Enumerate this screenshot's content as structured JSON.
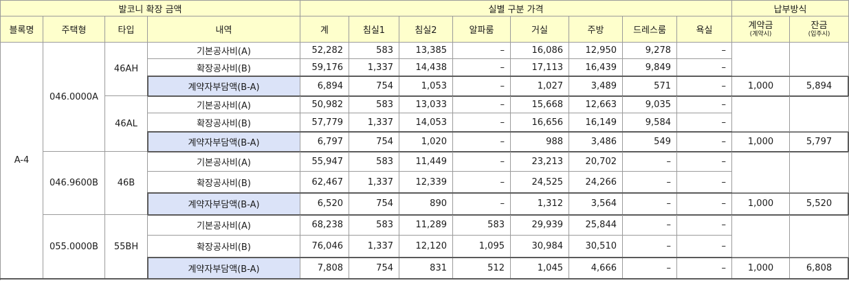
{
  "header": {
    "group_balcony": "발코니 확장 금액",
    "group_room_price": "실별 구분 가격",
    "group_payment": "납부방식",
    "columns": [
      "블록명",
      "주택형",
      "타입",
      "내역",
      "계",
      "침실1",
      "침실2",
      "알파룸",
      "거실",
      "주방",
      "드레스룸",
      "욕실"
    ],
    "contract": {
      "label": "계약금",
      "sub": "(계약시)"
    },
    "balance": {
      "label": "잔금",
      "sub": "(입주시)"
    }
  },
  "block": "A-4",
  "housing_types": [
    {
      "code": "046.0000A",
      "types": [
        {
          "name": "46AH",
          "rows": [
            {
              "label": "기본공사비(A)",
              "values": [
                "52,282",
                "583",
                "13,385",
                "–",
                "16,086",
                "12,950",
                "9,278",
                "–"
              ]
            },
            {
              "label": "확장공사비(B)",
              "values": [
                "59,176",
                "1,337",
                "14,438",
                "–",
                "17,113",
                "16,439",
                "9,849",
                "–"
              ]
            },
            {
              "label": "계약자부담액(B-A)",
              "values": [
                "6,894",
                "754",
                "1,053",
                "–",
                "1,027",
                "3,489",
                "571",
                "–"
              ],
              "contract": "1,000",
              "balance": "5,894"
            }
          ]
        },
        {
          "name": "46AL",
          "rows": [
            {
              "label": "기본공사비(A)",
              "values": [
                "50,982",
                "583",
                "13,033",
                "–",
                "15,668",
                "12,663",
                "9,035",
                "–"
              ]
            },
            {
              "label": "확장공사비(B)",
              "values": [
                "57,779",
                "1,337",
                "14,053",
                "–",
                "16,656",
                "16,149",
                "9,584",
                "–"
              ]
            },
            {
              "label": "계약자부담액(B-A)",
              "values": [
                "6,797",
                "754",
                "1,020",
                "–",
                "988",
                "3,486",
                "549",
                "–"
              ],
              "contract": "1,000",
              "balance": "5,797"
            }
          ]
        }
      ]
    },
    {
      "code": "046.9600B",
      "types": [
        {
          "name": "46B",
          "rows": [
            {
              "label": "기본공사비(A)",
              "values": [
                "55,947",
                "583",
                "11,449",
                "–",
                "23,213",
                "20,702",
                "–",
                "–"
              ]
            },
            {
              "label": "확장공사비(B)",
              "values": [
                "62,467",
                "1,337",
                "12,339",
                "–",
                "24,525",
                "24,266",
                "–",
                "–"
              ]
            },
            {
              "label": "계약자부담액(B-A)",
              "values": [
                "6,520",
                "754",
                "890",
                "–",
                "1,312",
                "3,564",
                "–",
                "–"
              ],
              "contract": "1,000",
              "balance": "5,520"
            }
          ]
        }
      ]
    },
    {
      "code": "055.0000B",
      "types": [
        {
          "name": "55BH",
          "rows": [
            {
              "label": "기본공사비(A)",
              "values": [
                "68,238",
                "583",
                "11,289",
                "583",
                "29,939",
                "25,844",
                "–",
                "–"
              ]
            },
            {
              "label": "확장공사비(B)",
              "values": [
                "76,046",
                "1,337",
                "12,120",
                "1,095",
                "30,984",
                "30,510",
                "–",
                "–"
              ]
            },
            {
              "label": "계약자부담액(B-A)",
              "values": [
                "7,808",
                "754",
                "831",
                "512",
                "1,045",
                "4,666",
                "–",
                "–"
              ],
              "contract": "1,000",
              "balance": "6,808"
            }
          ]
        }
      ]
    }
  ],
  "colors": {
    "header_bg": "#feffcc",
    "highlight_bg": "#dbe3f8",
    "frame": "#5a5a5a",
    "grid": "#9a9a9a"
  }
}
